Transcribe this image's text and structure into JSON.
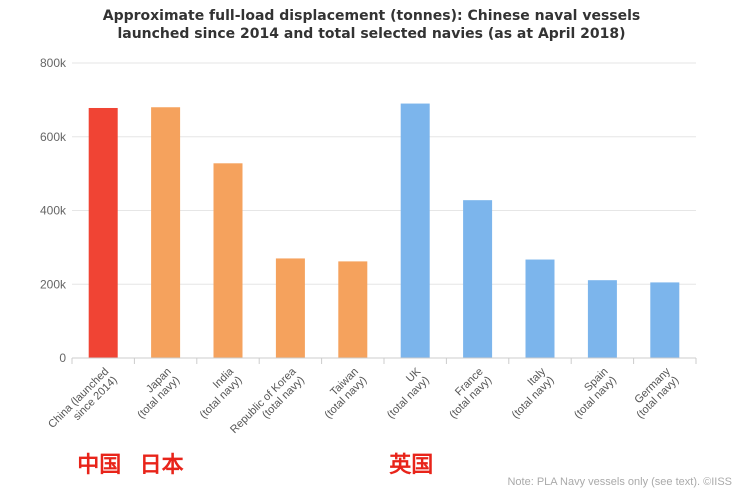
{
  "chart_data": {
    "type": "bar",
    "title": [
      "Approximate full-load displacement (tonnes): Chinese naval vessels",
      "launched since 2014 and total selected navies (as at April 2018)"
    ],
    "xlabel": "",
    "ylabel": "",
    "ylim": [
      0,
      800000
    ],
    "yticks": [
      {
        "value": 0,
        "label": "0"
      },
      {
        "value": 200000,
        "label": "200k"
      },
      {
        "value": 400000,
        "label": "400k"
      },
      {
        "value": 600000,
        "label": "600k"
      },
      {
        "value": 800000,
        "label": "800k"
      }
    ],
    "grid": true,
    "legend": "none",
    "categories": [
      [
        "China (launched",
        "since 2014)"
      ],
      [
        "Japan",
        "(total navy)"
      ],
      [
        "India",
        "(total navy)"
      ],
      [
        "Republic of Korea",
        "(total navy)"
      ],
      [
        "Taiwan",
        "(total navy)"
      ],
      [
        "UK",
        "(total navy)"
      ],
      [
        "France",
        "(total navy)"
      ],
      [
        "Italy",
        "(total navy)"
      ],
      [
        "Spain",
        "(total navy)"
      ],
      [
        "Germany",
        "(total navy)"
      ]
    ],
    "values": [
      678000,
      680000,
      528000,
      270000,
      262000,
      690000,
      428000,
      267000,
      211000,
      205000
    ],
    "colors": [
      "#f04434",
      "#f5a25d",
      "#f5a25d",
      "#f5a25d",
      "#f5a25d",
      "#7cb5ec",
      "#7cb5ec",
      "#7cb5ec",
      "#7cb5ec",
      "#7cb5ec"
    ],
    "note": "Note: PLA Navy vessels only (see text). ©IISS"
  },
  "annotations": [
    {
      "text": "中国",
      "category_index": 0
    },
    {
      "text": "日本",
      "category_index": 1
    },
    {
      "text": "英国",
      "category_index": 5
    }
  ],
  "annotation_color": "#e8241a"
}
